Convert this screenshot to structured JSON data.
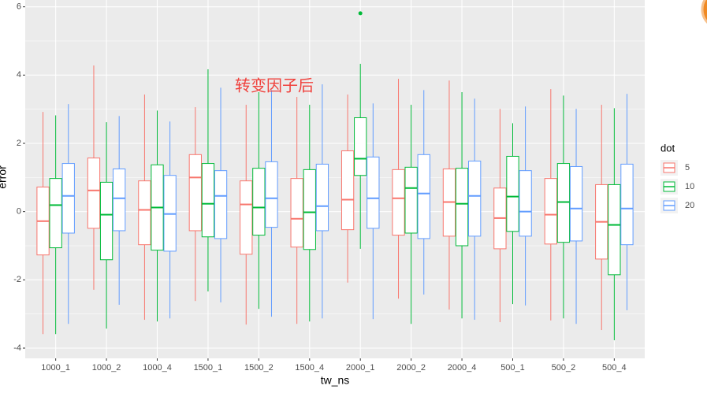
{
  "chart_data": {
    "type": "boxplot",
    "annotation": "转变因子后",
    "annotation_color": "#f0413c",
    "x_label": "tw_ns",
    "y_label": "error",
    "legend_title": "dot",
    "categories": [
      "1000_1",
      "1000_2",
      "1000_4",
      "1500_1",
      "1500_2",
      "1500_4",
      "2000_1",
      "2000_2",
      "2000_4",
      "500_1",
      "500_2",
      "500_4"
    ],
    "ylim": [
      -4.3,
      6.2
    ],
    "yticks": [
      -4,
      -2,
      0,
      2,
      4,
      6
    ],
    "grid": true,
    "series": [
      {
        "name": "5",
        "color": "#F8766D",
        "min": [
          -3.59,
          -2.29,
          -3.17,
          -2.62,
          -3.31,
          -3.29,
          -2.08,
          -2.55,
          -2.87,
          -3.24,
          -3.19,
          -3.47
        ],
        "q1": [
          -1.27,
          -0.49,
          -0.97,
          -0.56,
          -1.25,
          -1.04,
          -0.53,
          -0.69,
          -0.72,
          -1.09,
          -0.95,
          -1.39
        ],
        "median": [
          -0.28,
          0.62,
          0.05,
          1.0,
          0.21,
          -0.21,
          0.35,
          0.39,
          0.28,
          -0.19,
          -0.09,
          -0.3
        ],
        "q3": [
          0.72,
          1.57,
          0.9,
          1.67,
          0.9,
          0.97,
          1.78,
          1.23,
          1.25,
          0.69,
          0.97,
          0.79
        ],
        "max": [
          2.92,
          4.28,
          3.43,
          3.06,
          3.13,
          3.36,
          3.43,
          3.89,
          3.84,
          3.01,
          3.59,
          3.13
        ]
      },
      {
        "name": "10",
        "color": "#00BA38",
        "min": [
          -3.59,
          -3.43,
          -3.22,
          -2.34,
          -2.85,
          -3.22,
          -1.09,
          -3.29,
          -3.13,
          -2.71,
          -3.13,
          -3.77
        ],
        "q1": [
          -1.06,
          -1.41,
          -1.13,
          -0.74,
          -0.69,
          -1.11,
          1.06,
          -0.63,
          -1.0,
          -0.58,
          -0.9,
          -1.85
        ],
        "median": [
          0.19,
          -0.09,
          0.12,
          0.23,
          0.12,
          -0.02,
          1.55,
          0.69,
          0.23,
          0.44,
          0.28,
          -0.39
        ],
        "q3": [
          0.97,
          0.86,
          1.37,
          1.41,
          1.27,
          1.23,
          2.75,
          1.3,
          1.27,
          1.62,
          1.41,
          0.79
        ],
        "max": [
          2.82,
          2.62,
          2.96,
          4.17,
          3.5,
          3.13,
          4.33,
          3.13,
          3.5,
          2.59,
          3.4,
          3.03
        ],
        "outliers": [
          {
            "x": "2000_1",
            "y": 5.81
          }
        ]
      },
      {
        "name": "20",
        "color": "#619CFF",
        "min": [
          -3.29,
          -2.73,
          -3.13,
          -2.66,
          -3.08,
          -3.13,
          -3.15,
          -2.43,
          -3.17,
          -2.75,
          -3.29,
          -2.89
        ],
        "q1": [
          -0.63,
          -0.56,
          -1.16,
          -0.79,
          -0.46,
          -0.56,
          -0.49,
          -0.79,
          -0.72,
          -0.72,
          -0.86,
          -0.97
        ],
        "median": [
          0.46,
          0.39,
          -0.07,
          0.46,
          0.39,
          0.16,
          0.39,
          0.53,
          0.46,
          0.0,
          0.09,
          0.09
        ],
        "q3": [
          1.41,
          1.25,
          1.06,
          1.2,
          1.46,
          1.39,
          1.6,
          1.67,
          1.48,
          1.2,
          1.32,
          1.39
        ],
        "max": [
          3.15,
          2.8,
          2.64,
          3.63,
          3.56,
          3.73,
          3.17,
          3.56,
          3.31,
          3.08,
          3.01,
          3.45
        ]
      }
    ]
  }
}
